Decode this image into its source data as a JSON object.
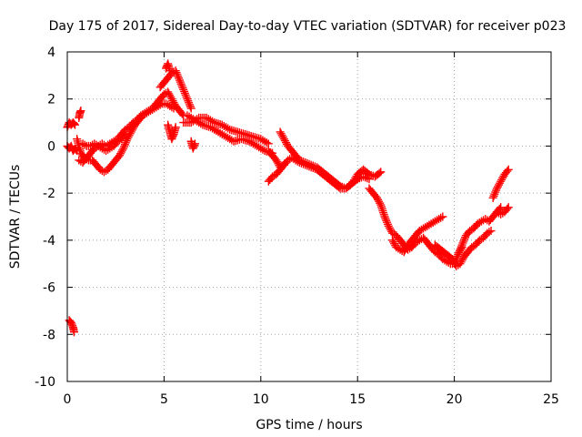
{
  "chart_data": {
    "type": "scatter",
    "title": "Day 175 of 2017, Sidereal Day-to-day VTEC variation (SDTVAR) for receiver p023",
    "xlabel": "GPS time / hours",
    "ylabel": "SDTVAR / TECUs",
    "xlim": [
      0,
      25
    ],
    "ylim": [
      -10,
      4
    ],
    "xticks": [
      0,
      5,
      10,
      15,
      20,
      25
    ],
    "yticks": [
      -10,
      -8,
      -6,
      -4,
      -2,
      0,
      2,
      4
    ],
    "xtick_labels": [
      "0",
      "5",
      "10",
      "15",
      "20",
      "25"
    ],
    "ytick_labels": [
      "-10",
      "-8",
      "-6",
      "-4",
      "-2",
      "0",
      "2",
      "4"
    ],
    "grid": true,
    "marker": "+",
    "series": [
      {
        "name": "p023",
        "color": "#ff0000",
        "segments": [
          {
            "x": [
              0.0,
              0.1,
              0.2,
              0.3,
              0.4
            ],
            "y": [
              0.8,
              1.0,
              0.9,
              1.0,
              0.9
            ]
          },
          {
            "x": [
              0.0,
              0.1,
              0.2,
              0.3,
              0.4,
              0.5
            ],
            "y": [
              0.0,
              -0.1,
              0.0,
              -0.2,
              -0.1,
              -0.2
            ]
          },
          {
            "x": [
              0.1,
              0.2,
              0.3,
              0.35
            ],
            "y": [
              -7.4,
              -7.5,
              -7.7,
              -7.9
            ]
          },
          {
            "x": [
              0.6,
              0.65,
              0.7
            ],
            "y": [
              1.2,
              1.4,
              1.5
            ]
          },
          {
            "x": [
              0.5,
              0.7,
              0.9,
              1.1,
              1.3,
              1.5,
              1.7,
              1.9,
              2.1,
              2.3,
              2.5,
              2.7,
              2.9,
              3.1,
              3.3,
              3.5,
              3.7,
              3.9,
              4.1,
              4.3,
              4.5,
              4.7,
              4.9,
              5.1,
              5.3,
              5.5
            ],
            "y": [
              0.3,
              -0.3,
              -0.5,
              -0.6,
              -0.6,
              -0.8,
              -1.0,
              -1.1,
              -1.0,
              -0.8,
              -0.6,
              -0.4,
              -0.1,
              0.3,
              0.6,
              0.9,
              1.1,
              1.3,
              1.4,
              1.5,
              1.6,
              1.7,
              1.8,
              1.8,
              1.7,
              1.6
            ]
          },
          {
            "x": [
              0.8,
              1.0,
              1.2,
              1.4,
              1.6,
              1.8,
              2.0,
              2.2,
              2.4,
              2.6,
              2.8,
              3.0,
              3.2,
              3.4,
              3.6,
              3.8,
              4.0,
              4.2,
              4.4,
              4.6,
              4.8,
              5.0,
              5.2,
              5.4,
              5.6,
              5.8,
              6.0
            ],
            "y": [
              0.1,
              0.0,
              0.0,
              0.1,
              0.0,
              0.1,
              0.0,
              0.1,
              0.2,
              0.3,
              0.5,
              0.7,
              0.8,
              1.0,
              1.1,
              1.3,
              1.4,
              1.5,
              1.6,
              1.8,
              2.0,
              2.2,
              2.3,
              2.0,
              1.7,
              1.5,
              1.3
            ]
          },
          {
            "x": [
              0.6,
              0.8,
              1.0,
              1.2,
              1.4,
              1.6,
              1.8,
              2.0,
              2.2,
              2.4,
              2.6,
              2.8,
              3.0
            ],
            "y": [
              -0.6,
              -0.7,
              -0.5,
              -0.3,
              -0.1,
              0.0,
              -0.1,
              -0.2,
              -0.1,
              0.0,
              0.2,
              0.3,
              0.5
            ]
          },
          {
            "x": [
              4.8,
              5.0,
              5.2,
              5.4,
              5.6,
              5.8,
              6.0,
              6.2,
              6.4
            ],
            "y": [
              2.5,
              2.7,
              2.9,
              3.1,
              3.2,
              2.8,
              2.4,
              2.0,
              1.6
            ]
          },
          {
            "x": [
              5.1,
              5.2,
              5.3
            ],
            "y": [
              3.3,
              3.5,
              3.2
            ]
          },
          {
            "x": [
              5.2,
              5.3,
              5.4,
              5.5,
              5.6
            ],
            "y": [
              0.9,
              0.6,
              0.3,
              0.5,
              0.8
            ]
          },
          {
            "x": [
              6.4,
              6.5,
              6.6
            ],
            "y": [
              0.2,
              -0.1,
              0.1
            ]
          },
          {
            "x": [
              6.0,
              6.4,
              6.8,
              7.2,
              7.6,
              8.0,
              8.4,
              8.8,
              9.2,
              9.6,
              10.0,
              10.4
            ],
            "y": [
              1.0,
              1.0,
              1.2,
              1.2,
              1.0,
              0.9,
              0.7,
              0.6,
              0.5,
              0.4,
              0.3,
              0.1
            ]
          },
          {
            "x": [
              6.2,
              6.6,
              7.0,
              7.4,
              7.8,
              8.2,
              8.6,
              9.0,
              9.4,
              9.8,
              10.2,
              10.6
            ],
            "y": [
              1.3,
              1.1,
              0.9,
              0.8,
              0.6,
              0.4,
              0.2,
              0.3,
              0.2,
              0.0,
              -0.2,
              -0.3
            ]
          },
          {
            "x": [
              10.4,
              10.6,
              10.8,
              11.0,
              11.2,
              11.4,
              11.6,
              11.8,
              12.0,
              12.3,
              12.6,
              12.9,
              13.2,
              13.5,
              13.8,
              14.1,
              14.4,
              14.7,
              15.0,
              15.3,
              15.6
            ],
            "y": [
              -0.2,
              -0.4,
              -0.6,
              -0.9,
              -0.8,
              -0.6,
              -0.5,
              -0.6,
              -0.7,
              -0.8,
              -0.9,
              -1.0,
              -1.2,
              -1.4,
              -1.6,
              -1.8,
              -1.8,
              -1.6,
              -1.4,
              -1.3,
              -1.4
            ]
          },
          {
            "x": [
              10.4,
              10.6,
              10.8,
              11.0,
              11.2
            ],
            "y": [
              -1.5,
              -1.3,
              -1.2,
              -1.0,
              -0.8
            ]
          },
          {
            "x": [
              11.0,
              11.2,
              11.4,
              11.6,
              11.8,
              12.0,
              12.3,
              12.6,
              12.9,
              13.2,
              13.5,
              13.8,
              14.1,
              14.4,
              14.7,
              15.0,
              15.3,
              15.6,
              15.9,
              16.2
            ],
            "y": [
              0.6,
              0.3,
              0.0,
              -0.2,
              -0.4,
              -0.6,
              -0.7,
              -0.8,
              -0.9,
              -1.1,
              -1.3,
              -1.5,
              -1.7,
              -1.8,
              -1.6,
              -1.2,
              -1.0,
              -1.2,
              -1.3,
              -1.1
            ]
          },
          {
            "x": [
              15.6,
              15.8,
              16.0,
              16.2,
              16.4,
              16.6,
              16.8,
              17.0,
              17.2,
              17.4,
              17.6,
              17.8,
              18.0,
              18.2,
              18.4,
              18.6,
              18.8,
              19.0,
              19.2,
              19.4,
              19.6,
              19.8,
              20.0,
              20.2,
              20.4
            ],
            "y": [
              -1.8,
              -2.0,
              -2.2,
              -2.5,
              -3.0,
              -3.4,
              -3.7,
              -3.8,
              -4.0,
              -4.2,
              -4.4,
              -4.3,
              -4.1,
              -4.0,
              -3.9,
              -4.1,
              -4.3,
              -4.5,
              -4.6,
              -4.8,
              -4.9,
              -5.0,
              -5.0,
              -4.6,
              -4.3
            ]
          },
          {
            "x": [
              16.8,
              17.0,
              17.2,
              17.4,
              17.6,
              17.8,
              18.0,
              18.2,
              18.4,
              18.6,
              18.8,
              19.0,
              19.2,
              19.4
            ],
            "y": [
              -4.0,
              -4.3,
              -4.4,
              -4.5,
              -4.2,
              -4.0,
              -3.8,
              -3.6,
              -3.5,
              -3.4,
              -3.3,
              -3.2,
              -3.1,
              -3.0
            ]
          },
          {
            "x": [
              19.0,
              19.3,
              19.6,
              19.9,
              20.1,
              20.3,
              20.5,
              20.7,
              20.9,
              21.1,
              21.3,
              21.5,
              21.7,
              21.9
            ],
            "y": [
              -4.2,
              -4.4,
              -4.6,
              -4.8,
              -5.1,
              -5.0,
              -4.7,
              -4.5,
              -4.3,
              -4.2,
              -4.0,
              -3.9,
              -3.7,
              -3.6
            ]
          },
          {
            "x": [
              20.2,
              20.4,
              20.6,
              20.8,
              21.0,
              21.2,
              21.4,
              21.6,
              21.8,
              22.0,
              22.2,
              22.4
            ],
            "y": [
              -4.6,
              -4.2,
              -3.8,
              -3.6,
              -3.5,
              -3.3,
              -3.2,
              -3.1,
              -3.2,
              -3.0,
              -2.8,
              -2.6
            ]
          },
          {
            "x": [
              22.0,
              22.2,
              22.4,
              22.6,
              22.8
            ],
            "y": [
              -2.2,
              -1.8,
              -1.5,
              -1.2,
              -1.0
            ]
          },
          {
            "x": [
              22.2,
              22.4,
              22.6,
              22.8
            ],
            "y": [
              -2.8,
              -2.9,
              -2.8,
              -2.6
            ]
          }
        ]
      }
    ]
  }
}
